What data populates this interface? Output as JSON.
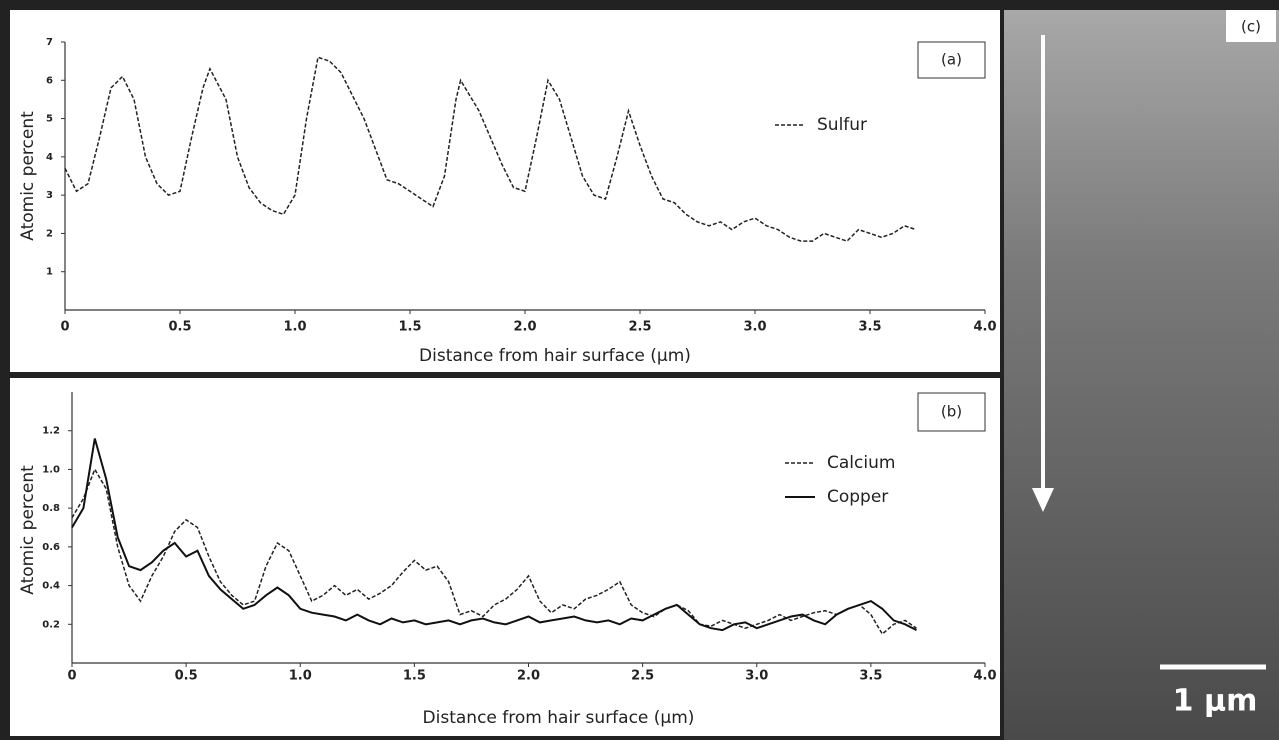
{
  "chart_data": [
    {
      "type": "line",
      "panel_label": "(a)",
      "xlabel": "Distance from hair surface (μm)",
      "ylabel": "Atomic percent",
      "xlim": [
        0,
        4
      ],
      "xticks": [
        0,
        0.5,
        {
          "value": 1,
          "label": "1.0"
        },
        1.5,
        {
          "value": 2,
          "label": "2.0"
        },
        2.5,
        {
          "value": 3,
          "label": "3.0"
        },
        3.5,
        {
          "value": 4,
          "label": "4.0"
        }
      ],
      "ylim": [
        0,
        7
      ],
      "yticks": [
        1,
        2,
        3,
        4,
        5,
        6,
        7
      ],
      "x": [
        0,
        0.05,
        0.1,
        0.15,
        0.2,
        0.25,
        0.3,
        0.35,
        0.4,
        0.45,
        0.5,
        0.55,
        0.6,
        0.63,
        0.7,
        0.75,
        0.8,
        0.85,
        0.9,
        0.95,
        1.0,
        1.05,
        1.1,
        1.15,
        1.2,
        1.25,
        1.3,
        1.35,
        1.4,
        1.45,
        1.5,
        1.55,
        1.6,
        1.65,
        1.7,
        1.72,
        1.8,
        1.85,
        1.9,
        1.95,
        2.0,
        2.05,
        2.1,
        2.15,
        2.2,
        2.25,
        2.3,
        2.35,
        2.4,
        2.45,
        2.5,
        2.55,
        2.6,
        2.65,
        2.7,
        2.75,
        2.8,
        2.85,
        2.9,
        2.95,
        3.0,
        3.05,
        3.1,
        3.15,
        3.2,
        3.25,
        3.3,
        3.35,
        3.4,
        3.45,
        3.5,
        3.55,
        3.6,
        3.65,
        3.7
      ],
      "series": [
        {
          "name": "Sulfur",
          "color": "#222222",
          "line_style": "dashed",
          "values": [
            3.7,
            3.1,
            3.3,
            4.5,
            5.8,
            6.1,
            5.5,
            4.0,
            3.3,
            3.0,
            3.1,
            4.5,
            5.8,
            6.3,
            5.5,
            4.0,
            3.2,
            2.8,
            2.6,
            2.5,
            3.0,
            5.0,
            6.6,
            6.5,
            6.2,
            5.6,
            5.0,
            4.2,
            3.4,
            3.3,
            3.1,
            2.9,
            2.7,
            3.5,
            5.5,
            6.0,
            5.2,
            4.5,
            3.8,
            3.2,
            3.1,
            4.5,
            6.0,
            5.5,
            4.5,
            3.5,
            3.0,
            2.9,
            4.0,
            5.2,
            4.3,
            3.5,
            2.9,
            2.8,
            2.5,
            2.3,
            2.2,
            2.3,
            2.1,
            2.3,
            2.4,
            2.2,
            2.1,
            1.9,
            1.8,
            1.8,
            2.0,
            1.9,
            1.8,
            2.1,
            2.0,
            1.9,
            2.0,
            2.2,
            2.1
          ]
        }
      ]
    },
    {
      "type": "line",
      "panel_label": "(b)",
      "xlabel": "Distance from hair surface (μm)",
      "ylabel": "Atomic percent",
      "xlim": [
        0,
        4
      ],
      "xticks": [
        0,
        0.5,
        {
          "value": 1,
          "label": "1.0"
        },
        1.5,
        {
          "value": 2,
          "label": "2.0"
        },
        2.5,
        {
          "value": 3,
          "label": "3.0"
        },
        3.5,
        {
          "value": 4,
          "label": "4.0"
        }
      ],
      "ylim": [
        0,
        1.4
      ],
      "yticks": [
        0.2,
        0.4,
        0.6,
        0.8,
        {
          "value": 1,
          "label": "1.0"
        },
        1.2
      ],
      "x": [
        0,
        0.05,
        0.1,
        0.15,
        0.2,
        0.25,
        0.3,
        0.35,
        0.4,
        0.45,
        0.5,
        0.55,
        0.6,
        0.65,
        0.7,
        0.75,
        0.8,
        0.85,
        0.9,
        0.95,
        1.0,
        1.05,
        1.1,
        1.15,
        1.2,
        1.25,
        1.3,
        1.35,
        1.4,
        1.45,
        1.5,
        1.55,
        1.6,
        1.65,
        1.7,
        1.75,
        1.8,
        1.85,
        1.9,
        1.95,
        2.0,
        2.05,
        2.1,
        2.15,
        2.2,
        2.25,
        2.3,
        2.35,
        2.4,
        2.45,
        2.5,
        2.55,
        2.6,
        2.65,
        2.7,
        2.75,
        2.8,
        2.85,
        2.9,
        2.95,
        3.0,
        3.05,
        3.1,
        3.15,
        3.2,
        3.25,
        3.3,
        3.35,
        3.4,
        3.45,
        3.5,
        3.55,
        3.6,
        3.65,
        3.7
      ],
      "series": [
        {
          "name": "Calcium",
          "color": "#222222",
          "line_style": "dashed",
          "values": [
            0.75,
            0.85,
            1.0,
            0.9,
            0.6,
            0.4,
            0.32,
            0.45,
            0.55,
            0.68,
            0.74,
            0.7,
            0.55,
            0.42,
            0.35,
            0.3,
            0.32,
            0.5,
            0.62,
            0.58,
            0.45,
            0.32,
            0.35,
            0.4,
            0.35,
            0.38,
            0.33,
            0.36,
            0.4,
            0.47,
            0.53,
            0.48,
            0.5,
            0.42,
            0.25,
            0.27,
            0.24,
            0.3,
            0.33,
            0.38,
            0.45,
            0.32,
            0.26,
            0.3,
            0.28,
            0.33,
            0.35,
            0.38,
            0.42,
            0.3,
            0.26,
            0.24,
            0.28,
            0.3,
            0.27,
            0.2,
            0.19,
            0.22,
            0.2,
            0.18,
            0.2,
            0.22,
            0.25,
            0.22,
            0.24,
            0.26,
            0.27,
            0.25,
            0.28,
            0.3,
            0.25,
            0.15,
            0.2,
            0.22,
            0.18
          ]
        },
        {
          "name": "Copper",
          "color": "#111111",
          "line_style": "solid",
          "values": [
            0.7,
            0.8,
            1.16,
            0.95,
            0.65,
            0.5,
            0.48,
            0.52,
            0.58,
            0.62,
            0.55,
            0.58,
            0.45,
            0.38,
            0.33,
            0.28,
            0.3,
            0.35,
            0.39,
            0.35,
            0.28,
            0.26,
            0.25,
            0.24,
            0.22,
            0.25,
            0.22,
            0.2,
            0.23,
            0.21,
            0.22,
            0.2,
            0.21,
            0.22,
            0.2,
            0.22,
            0.23,
            0.21,
            0.2,
            0.22,
            0.24,
            0.21,
            0.22,
            0.23,
            0.24,
            0.22,
            0.21,
            0.22,
            0.2,
            0.23,
            0.22,
            0.25,
            0.28,
            0.3,
            0.25,
            0.2,
            0.18,
            0.17,
            0.2,
            0.21,
            0.18,
            0.2,
            0.22,
            0.24,
            0.25,
            0.22,
            0.2,
            0.25,
            0.28,
            0.3,
            0.32,
            0.28,
            0.22,
            0.2,
            0.17
          ]
        }
      ]
    }
  ],
  "image_panel": {
    "label": "(c)",
    "scale_bar": "1 μm"
  }
}
